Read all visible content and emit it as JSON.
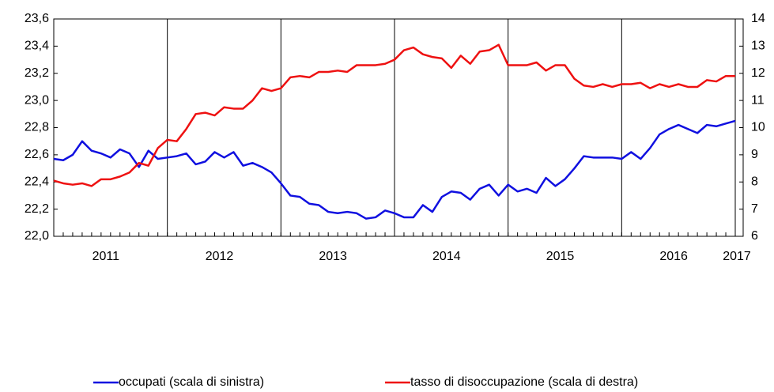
{
  "chart_data": {
    "type": "line",
    "categories": [
      null,
      null,
      null,
      null,
      null,
      null,
      "2011",
      null,
      null,
      null,
      null,
      null,
      null,
      null,
      null,
      null,
      null,
      null,
      "2012",
      null,
      null,
      null,
      null,
      null,
      null,
      null,
      null,
      null,
      null,
      null,
      "2013",
      null,
      null,
      null,
      null,
      null,
      null,
      null,
      null,
      null,
      null,
      null,
      "2014",
      null,
      null,
      null,
      null,
      null,
      null,
      null,
      null,
      null,
      null,
      null,
      "2015",
      null,
      null,
      null,
      null,
      null,
      null,
      null,
      null,
      null,
      null,
      null,
      "2016",
      null,
      null,
      null,
      null,
      null,
      "2017"
    ],
    "series": [
      {
        "name": "occupati (scala di sinistra)",
        "color": "#1010e0",
        "axis": "y",
        "values": [
          22.57,
          22.56,
          22.6,
          22.7,
          22.63,
          22.61,
          22.58,
          22.64,
          22.61,
          22.51,
          22.63,
          22.57,
          22.58,
          22.59,
          22.61,
          22.53,
          22.55,
          22.62,
          22.58,
          22.62,
          22.52,
          22.54,
          22.51,
          22.47,
          22.39,
          22.3,
          22.29,
          22.24,
          22.23,
          22.18,
          22.17,
          22.18,
          22.17,
          22.13,
          22.14,
          22.19,
          22.17,
          22.14,
          22.14,
          22.23,
          22.18,
          22.29,
          22.33,
          22.32,
          22.27,
          22.35,
          22.38,
          22.3,
          22.38,
          22.33,
          22.35,
          22.32,
          22.43,
          22.37,
          22.42,
          22.5,
          22.59,
          22.58,
          22.58,
          22.58,
          22.57,
          22.62,
          22.57,
          22.65,
          22.75,
          22.79,
          22.82,
          22.79,
          22.76,
          22.82,
          22.81,
          22.83,
          22.85
        ]
      },
      {
        "name": "tasso di disoccupazione (scala di destra)",
        "color": "#ee1111",
        "axis": "y2",
        "values": [
          8.05,
          7.95,
          7.9,
          7.95,
          7.85,
          8.1,
          8.1,
          8.2,
          8.35,
          8.7,
          8.6,
          9.25,
          9.55,
          9.5,
          9.95,
          10.5,
          10.55,
          10.45,
          10.75,
          10.7,
          10.7,
          11.0,
          11.45,
          11.35,
          11.45,
          11.85,
          11.9,
          11.85,
          12.05,
          12.05,
          12.1,
          12.05,
          12.3,
          12.3,
          12.3,
          12.35,
          12.5,
          12.85,
          12.95,
          12.7,
          12.6,
          12.55,
          12.2,
          12.65,
          12.35,
          12.8,
          12.85,
          13.05,
          12.3,
          12.3,
          12.3,
          12.4,
          12.1,
          12.3,
          12.3,
          11.8,
          11.55,
          11.5,
          11.6,
          11.5,
          11.6,
          11.6,
          11.65,
          11.45,
          11.6,
          11.5,
          11.6,
          11.5,
          11.5,
          11.75,
          11.7,
          11.9,
          11.9
        ]
      }
    ],
    "ylim": [
      22.0,
      23.6
    ],
    "yticks": [
      {
        "value": 22.0,
        "label": "22,0"
      },
      {
        "value": 22.2,
        "label": "22,2"
      },
      {
        "value": 22.4,
        "label": "22,4"
      },
      {
        "value": 22.6,
        "label": "22,6"
      },
      {
        "value": 22.8,
        "label": "22,8"
      },
      {
        "value": 23.0,
        "label": "23,0"
      },
      {
        "value": 23.2,
        "label": "23,2"
      },
      {
        "value": 23.4,
        "label": "23,4"
      },
      {
        "value": 23.6,
        "label": "23,6"
      }
    ],
    "y2lim": [
      6,
      14
    ],
    "y2ticks": [
      6,
      7,
      8,
      9,
      10,
      11,
      12,
      13,
      14
    ]
  }
}
